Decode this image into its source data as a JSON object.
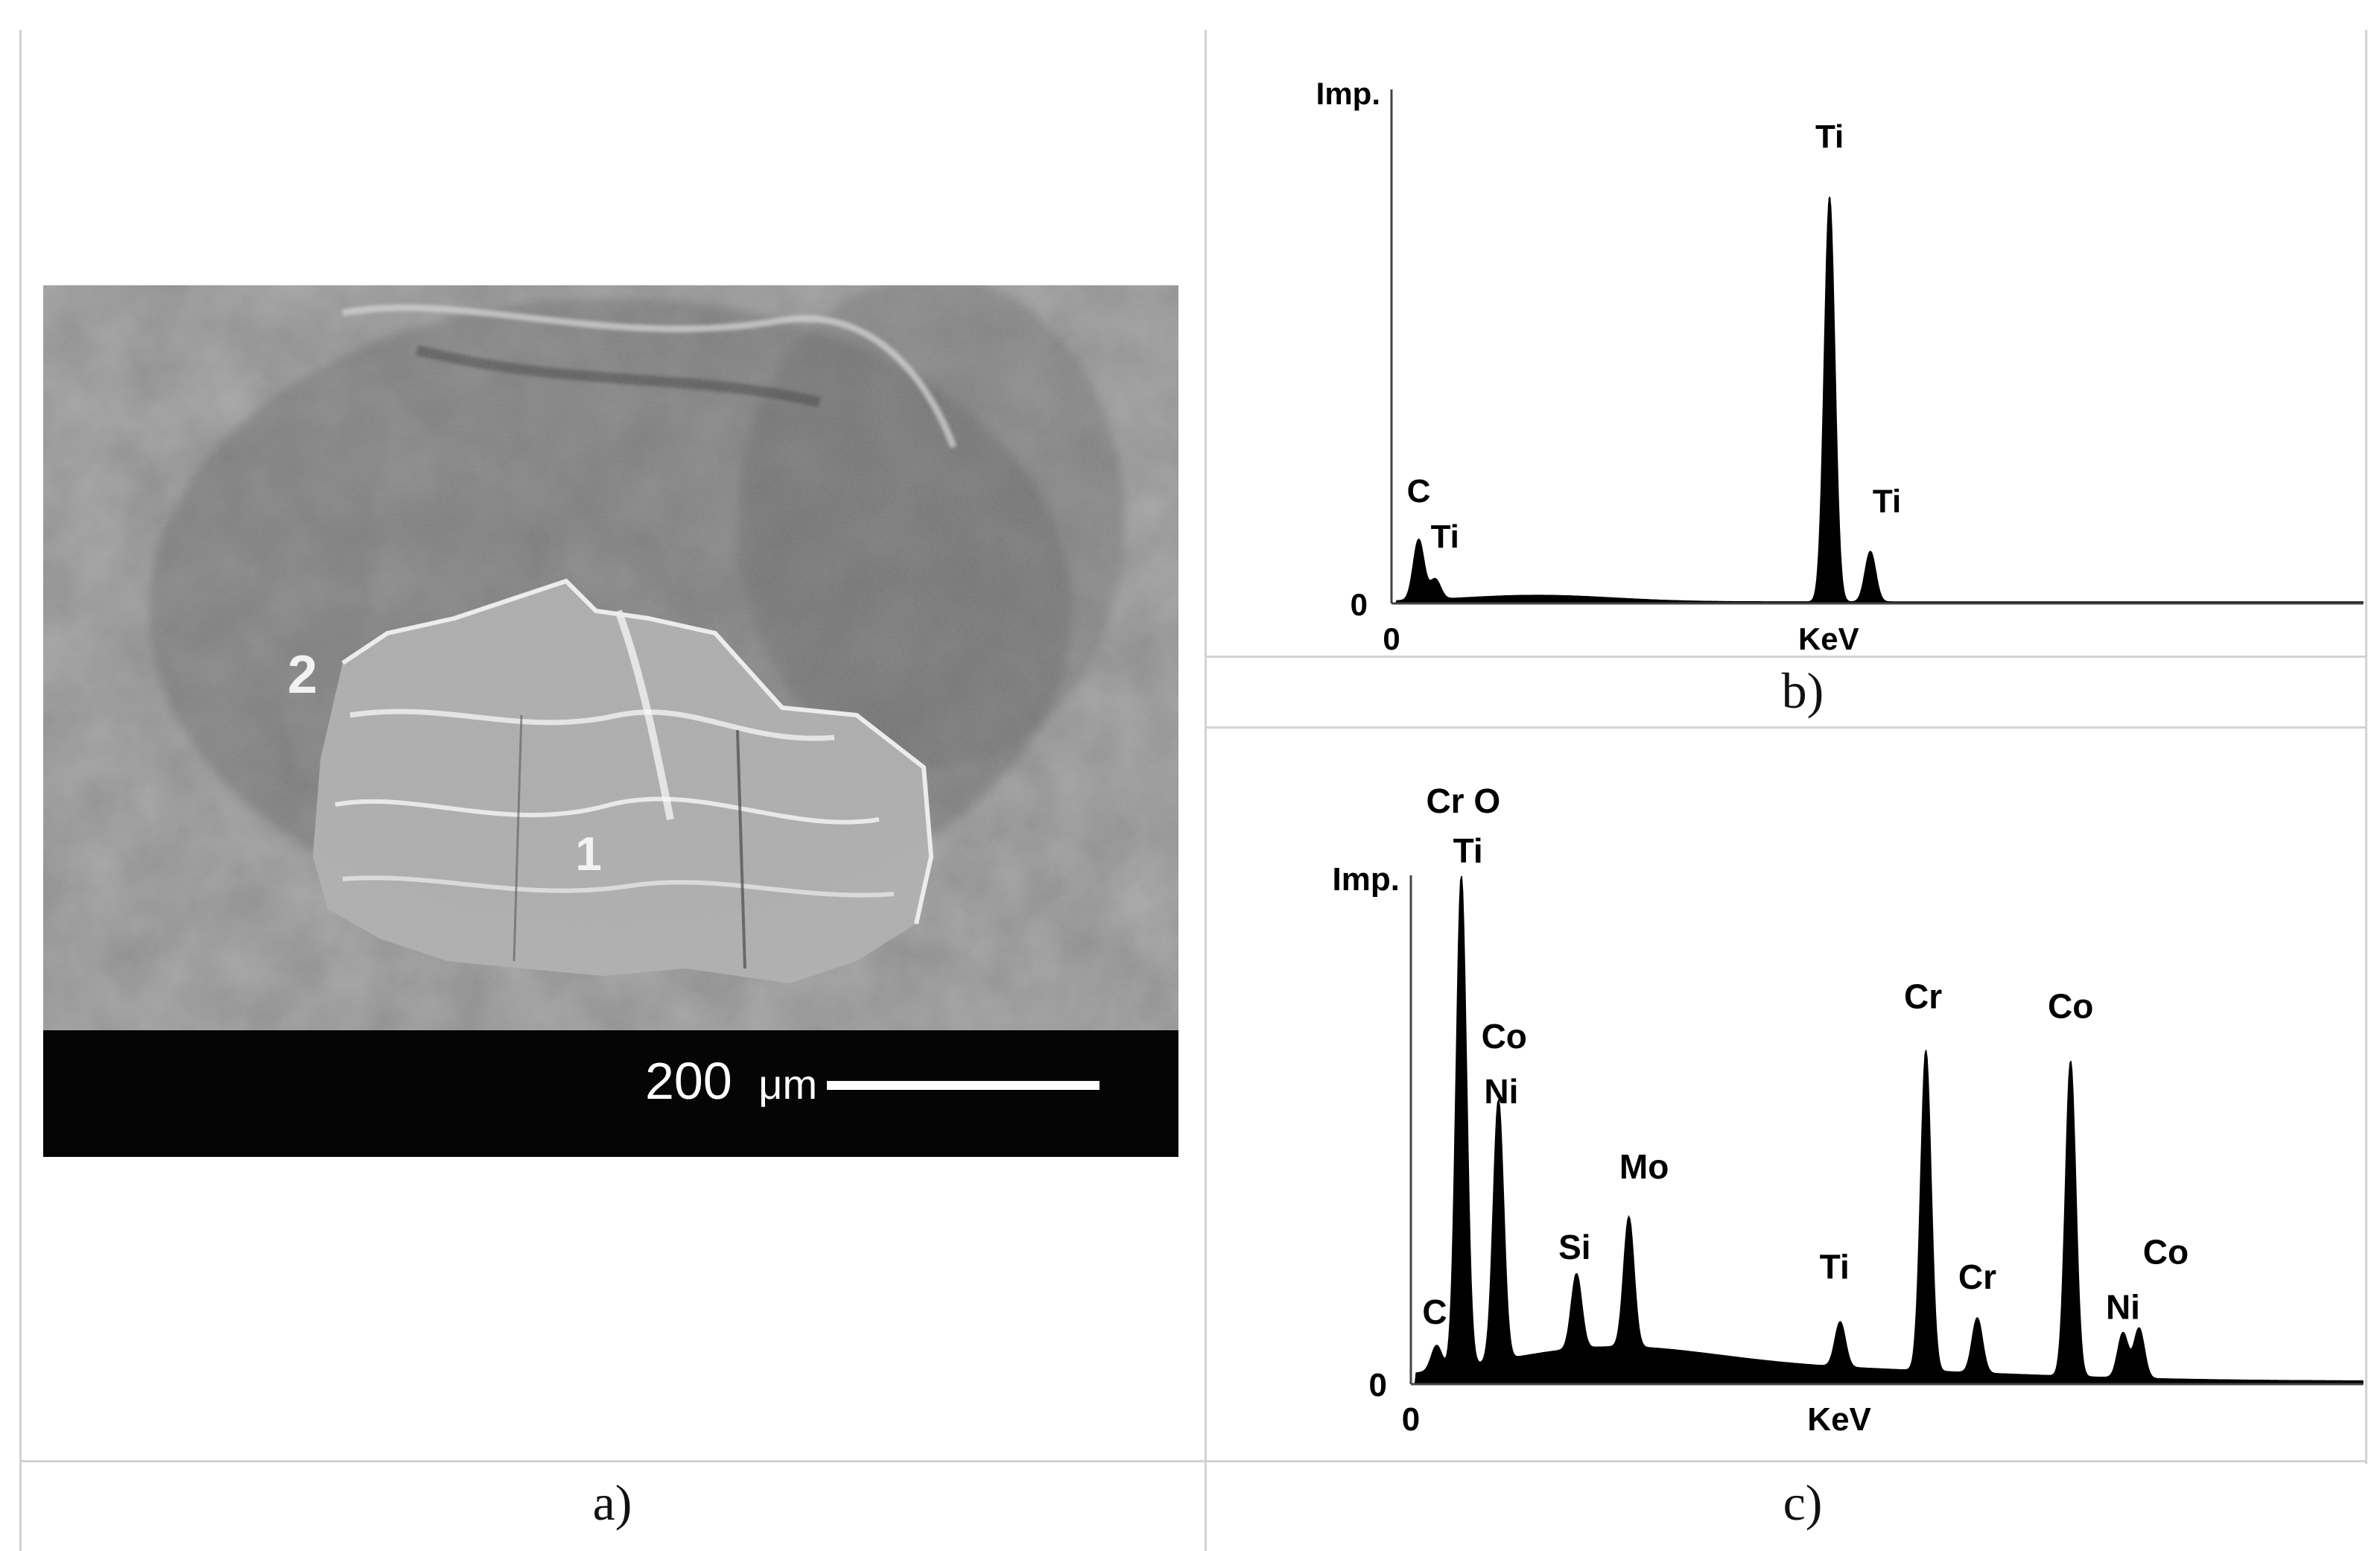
{
  "figure": {
    "captions": {
      "a": "a)",
      "b": "b)",
      "c": "c)"
    },
    "sem": {
      "region_labels": [
        "1",
        "2"
      ],
      "scale_bar": {
        "value": "200",
        "unit": "μm"
      }
    }
  },
  "chart_data": [
    {
      "type": "area",
      "id": "b",
      "ylabel": "Imp.",
      "xlabel": "KeV",
      "x_origin_label": "0",
      "y_origin_label": "0",
      "x_range": [
        0,
        10
      ],
      "ylim": [
        0,
        100
      ],
      "peaks": [
        {
          "x": 0.28,
          "y": 12
        },
        {
          "x": 0.45,
          "y": 4
        },
        {
          "x": 4.51,
          "y": 80
        },
        {
          "x": 4.93,
          "y": 10
        }
      ],
      "peak_labels": [
        {
          "text": "Ti",
          "x": 4.51,
          "y": 90
        },
        {
          "text": "C",
          "x": 0.28,
          "y": 20
        },
        {
          "text": "Ti",
          "x": 0.55,
          "y": 11
        },
        {
          "text": "Ti",
          "x": 5.1,
          "y": 18
        }
      ]
    },
    {
      "type": "area",
      "id": "c",
      "ylabel": "Imp.",
      "xlabel": "KeV",
      "x_origin_label": "0",
      "y_origin_label": "0",
      "x_range": [
        0,
        10
      ],
      "ylim": [
        0,
        100
      ],
      "peaks": [
        {
          "x": 0.27,
          "y": 5
        },
        {
          "x": 0.53,
          "y": 98
        },
        {
          "x": 0.92,
          "y": 52
        },
        {
          "x": 1.74,
          "y": 15
        },
        {
          "x": 2.29,
          "y": 26
        },
        {
          "x": 4.51,
          "y": 9
        },
        {
          "x": 5.41,
          "y": 64
        },
        {
          "x": 5.95,
          "y": 11
        },
        {
          "x": 6.93,
          "y": 63
        },
        {
          "x": 7.48,
          "y": 9
        },
        {
          "x": 7.65,
          "y": 10
        }
      ],
      "peak_labels": [
        {
          "text": "Cr O",
          "x": 0.55,
          "y": 114
        },
        {
          "text": "Ti",
          "x": 0.6,
          "y": 104
        },
        {
          "text": "Co",
          "x": 0.98,
          "y": 67
        },
        {
          "text": "Ni",
          "x": 0.95,
          "y": 56
        },
        {
          "text": "C",
          "x": 0.25,
          "y": 12
        },
        {
          "text": "Si",
          "x": 1.72,
          "y": 25
        },
        {
          "text": "Mo",
          "x": 2.45,
          "y": 41
        },
        {
          "text": "Ti",
          "x": 4.45,
          "y": 21
        },
        {
          "text": "Cr",
          "x": 5.38,
          "y": 75
        },
        {
          "text": "Cr",
          "x": 5.95,
          "y": 19
        },
        {
          "text": "Co",
          "x": 6.93,
          "y": 73
        },
        {
          "text": "Co",
          "x": 7.93,
          "y": 24
        },
        {
          "text": "Ni",
          "x": 7.48,
          "y": 13
        }
      ]
    }
  ]
}
